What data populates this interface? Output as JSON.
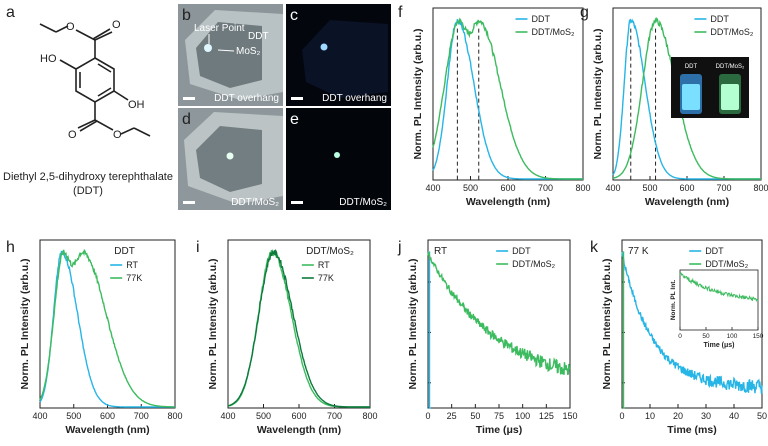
{
  "molecule": {
    "panel": "a",
    "atom_labels": [
      "O",
      "O",
      "HO",
      "OH",
      "O",
      "O"
    ],
    "name_line1": "Diethyl 2,5-dihydroxy terephthalate",
    "name_line2": "(DDT)"
  },
  "photos": [
    {
      "panel": "b",
      "caption": "DDT overhang",
      "annotations": [
        "Laser Point",
        "DDT",
        "MoS₂"
      ],
      "style": "brightfield"
    },
    {
      "panel": "c",
      "caption": "DDT overhang",
      "style": "dark"
    },
    {
      "panel": "d",
      "caption": "DDT/MoS₂",
      "style": "brightfield"
    },
    {
      "panel": "e",
      "caption": "DDT/MoS₂",
      "style": "dark"
    }
  ],
  "inset_photo": {
    "labels": [
      "DDT",
      "DDT/MoS₂"
    ]
  },
  "colors": {
    "blue": "#27b5e6",
    "green": "#3dbb5f",
    "darkgreen": "#0e7a3e",
    "axis": "#222222"
  },
  "chart_data": [
    {
      "panel": "f",
      "type": "line",
      "xlabel": "Wavelength (nm)",
      "ylabel": "Norm. PL Intensity (arb.u.)",
      "xlim": [
        400,
        800
      ],
      "xticks": [
        400,
        500,
        600,
        700,
        800
      ],
      "series": [
        {
          "name": "DDT",
          "color": "blue",
          "peak": 465,
          "wl": 38,
          "wr": 62
        },
        {
          "name": "DDT/MoS₂",
          "color": "green",
          "peak": 522,
          "wl": 55,
          "wr": 80,
          "plateau": 470
        }
      ],
      "dashed_lines": [
        465,
        522
      ]
    },
    {
      "panel": "g",
      "type": "line",
      "xlabel": "Wavelength (nm)",
      "ylabel": "Norm. PL Intensity (arb.u.)",
      "xlim": [
        400,
        800
      ],
      "xticks": [
        400,
        500,
        600,
        700,
        800
      ],
      "series": [
        {
          "name": "DDT",
          "color": "blue",
          "peak": 448,
          "wl": 25,
          "wr": 55
        },
        {
          "name": "DDT/MoS₂",
          "color": "green",
          "peak": 515,
          "wl": 50,
          "wr": 75
        }
      ],
      "dashed_lines": [
        448,
        515
      ]
    },
    {
      "panel": "h",
      "type": "line",
      "title": "DDT",
      "xlabel": "Wavelength (nm)",
      "ylabel": "Norm. PL Intensity (arb.u.)",
      "xlim": [
        400,
        800
      ],
      "xticks": [
        400,
        500,
        600,
        700,
        800
      ],
      "series": [
        {
          "name": "RT",
          "color": "blue",
          "peak": 465,
          "wl": 35,
          "wr": 65
        },
        {
          "name": "77K",
          "color": "green",
          "peak": 470,
          "wl": 40,
          "wr": 100,
          "plateau": 525
        }
      ]
    },
    {
      "panel": "i",
      "type": "line",
      "title": "DDT/MoS₂",
      "xlabel": "Wavelength (nm)",
      "ylabel": "Norm. PL Intensity (arb.u.)",
      "xlim": [
        400,
        800
      ],
      "xticks": [
        400,
        500,
        600,
        700,
        800
      ],
      "series": [
        {
          "name": "RT",
          "color": "green",
          "peak": 525,
          "wl": 55,
          "wr": 75
        },
        {
          "name": "77K",
          "color": "darkgreen",
          "peak": 528,
          "wl": 58,
          "wr": 78
        }
      ]
    },
    {
      "panel": "j",
      "type": "line",
      "title": "RT",
      "xlabel": "Time (μs)",
      "ylabel": "Norm. PL Intensity (arb.u.)",
      "xlim": [
        0,
        150
      ],
      "xticks": [
        0,
        25,
        50,
        75,
        100,
        125,
        150
      ],
      "log_y": true,
      "series": [
        {
          "name": "DDT",
          "color": "blue",
          "decay": "spike"
        },
        {
          "name": "DDT/MoS₂",
          "color": "green",
          "decay": 95
        }
      ]
    },
    {
      "panel": "k",
      "type": "line",
      "title": "77 K",
      "xlabel": "Time (ms)",
      "ylabel": "Norm. PL Intensity (arb.u.)",
      "xlim": [
        0,
        50
      ],
      "xticks": [
        0,
        10,
        20,
        30,
        40,
        50
      ],
      "log_y": true,
      "series": [
        {
          "name": "DDT",
          "color": "blue",
          "decay": 14
        },
        {
          "name": "DDT/MoS₂",
          "color": "green",
          "decay": "spike"
        }
      ],
      "inset": {
        "xlabel": "Time (μs)",
        "ylabel": "Norm. PL Int.",
        "xlim": [
          0,
          150
        ],
        "xticks": [
          0,
          50,
          100,
          150
        ],
        "series": [
          {
            "name": "DDT/MoS₂",
            "color": "green",
            "decay": 140
          }
        ]
      }
    }
  ]
}
